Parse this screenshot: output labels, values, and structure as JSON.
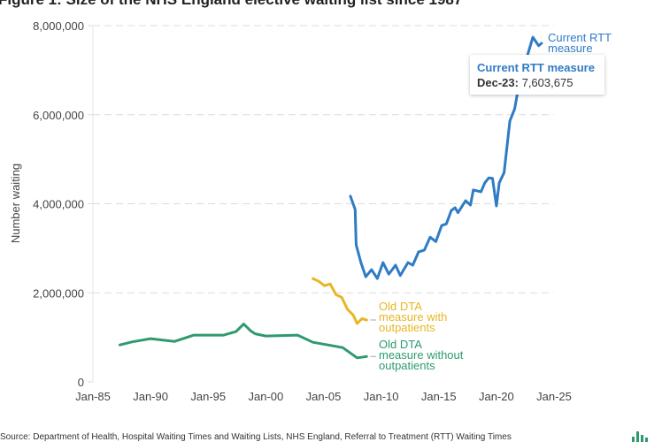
{
  "title": "Figure 1: Size of the NHS England elective waiting list since 1987",
  "source": "Source: Department of Health, Hospital Waiting Times and Waiting Lists, NHS England, Referral to Treatment (RTT) Waiting Times",
  "tooltip": {
    "series": "Current RTT measure",
    "date": "Dec-23:",
    "value": "7,603,675"
  },
  "chart_data": {
    "type": "line",
    "title": "Figure 1: Size of the NHS England elective waiting list since 1987",
    "xlabel": "",
    "ylabel": "Number waiting",
    "xlim": [
      "1985-01",
      "2025-01"
    ],
    "ylim": [
      0,
      8000000
    ],
    "x_ticks": [
      "Jan-85",
      "Jan-90",
      "Jan-95",
      "Jan-00",
      "Jan-05",
      "Jan-10",
      "Jan-15",
      "Jan-20",
      "Jan-25"
    ],
    "y_ticks": [
      "0",
      "2,000,000",
      "4,000,000",
      "6,000,000",
      "8,000,000"
    ],
    "y_tick_values": [
      0,
      2000000,
      4000000,
      6000000,
      8000000
    ],
    "grid": "horizontal dashed",
    "legend": "inline labels at line ends",
    "series": [
      {
        "name": "Current RTT measure",
        "label_lines": [
          "Current RTT",
          "measure"
        ],
        "color": "#2f7bc4",
        "x": [
          "2007-05",
          "2007-10",
          "2007-11",
          "2008-04",
          "2008-09",
          "2009-03",
          "2009-09",
          "2010-03",
          "2010-09",
          "2011-04",
          "2011-09",
          "2012-05",
          "2012-10",
          "2013-04",
          "2013-10",
          "2014-04",
          "2014-10",
          "2015-04",
          "2015-09",
          "2016-02",
          "2016-06",
          "2016-09",
          "2017-05",
          "2017-10",
          "2018-01",
          "2018-09",
          "2019-01",
          "2019-05",
          "2019-09",
          "2020-01",
          "2020-04",
          "2020-09",
          "2021-03",
          "2021-08",
          "2022-01",
          "2022-10",
          "2023-03",
          "2023-09",
          "2023-12"
        ],
        "y": [
          4170000,
          3870000,
          3080000,
          2680000,
          2360000,
          2520000,
          2320000,
          2680000,
          2420000,
          2620000,
          2390000,
          2680000,
          2620000,
          2920000,
          2960000,
          3250000,
          3150000,
          3510000,
          3550000,
          3850000,
          3910000,
          3800000,
          4070000,
          3970000,
          4310000,
          4270000,
          4470000,
          4580000,
          4570000,
          3950000,
          4470000,
          4700000,
          5860000,
          6130000,
          6730000,
          7380000,
          7740000,
          7550000,
          7603675
        ]
      },
      {
        "name": "Old DTA measure with outpatients",
        "label_lines": [
          "Old DTA",
          "measure with",
          "outpatients"
        ],
        "color": "#e8b624",
        "x": [
          "2004-02",
          "2004-08",
          "2005-02",
          "2005-08",
          "2006-02",
          "2006-08",
          "2007-02",
          "2007-08",
          "2007-12",
          "2008-05",
          "2008-10"
        ],
        "y": [
          2320000,
          2260000,
          2160000,
          2200000,
          1960000,
          1900000,
          1630000,
          1500000,
          1310000,
          1420000,
          1390000
        ]
      },
      {
        "name": "Old DTA measure without outpatients",
        "label_lines": [
          "Old DTA",
          "measure without",
          "outpatients"
        ],
        "color": "#2e9a6e",
        "x": [
          "1987-05",
          "1988-06",
          "1990-01",
          "1992-02",
          "1993-10",
          "1996-05",
          "1997-06",
          "1998-02",
          "1998-09",
          "1999-02",
          "2000-01",
          "2002-10",
          "2004-02",
          "2006-09",
          "2007-12",
          "2008-10"
        ],
        "y": [
          830000,
          900000,
          970000,
          910000,
          1050000,
          1050000,
          1130000,
          1300000,
          1150000,
          1080000,
          1030000,
          1050000,
          890000,
          770000,
          540000,
          570000
        ]
      }
    ]
  }
}
